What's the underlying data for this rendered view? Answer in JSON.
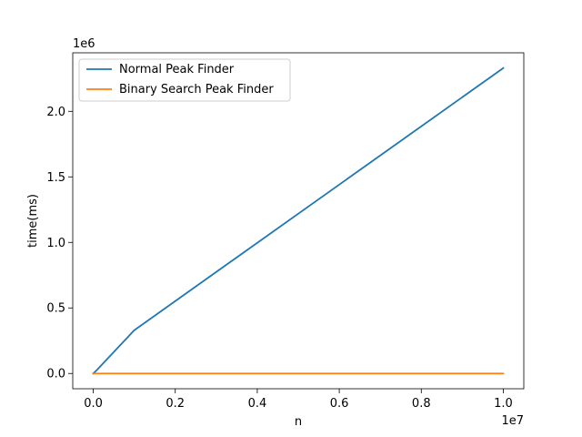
{
  "chart_data": {
    "type": "line",
    "title": "",
    "xlabel": "n",
    "ylabel": "time(ms)",
    "x_offset_label": "1e7",
    "y_offset_label": "1e6",
    "xlim": [
      -500000,
      10500000
    ],
    "ylim": [
      -116500,
      2446500
    ],
    "x_ticks": [
      0,
      2000000,
      4000000,
      6000000,
      8000000,
      10000000
    ],
    "x_tick_labels": [
      "0.0",
      "0.2",
      "0.4",
      "0.6",
      "0.8",
      "1.0"
    ],
    "y_ticks": [
      0,
      500000,
      1000000,
      1500000,
      2000000
    ],
    "y_tick_labels": [
      "0.0",
      "0.5",
      "1.0",
      "1.5",
      "2.0"
    ],
    "grid": false,
    "legend_position": "top-left",
    "series": [
      {
        "name": "Normal Peak Finder",
        "color": "#1f77b4",
        "x": [
          1000,
          10000,
          100000,
          1000000,
          10000000
        ],
        "y": [
          300,
          3000,
          30000,
          330000,
          2330000
        ]
      },
      {
        "name": "Binary Search Peak Finder",
        "color": "#ff7f0e",
        "x": [
          1000,
          10000,
          100000,
          1000000,
          10000000
        ],
        "y": [
          5,
          8,
          10,
          15,
          20
        ]
      }
    ]
  }
}
